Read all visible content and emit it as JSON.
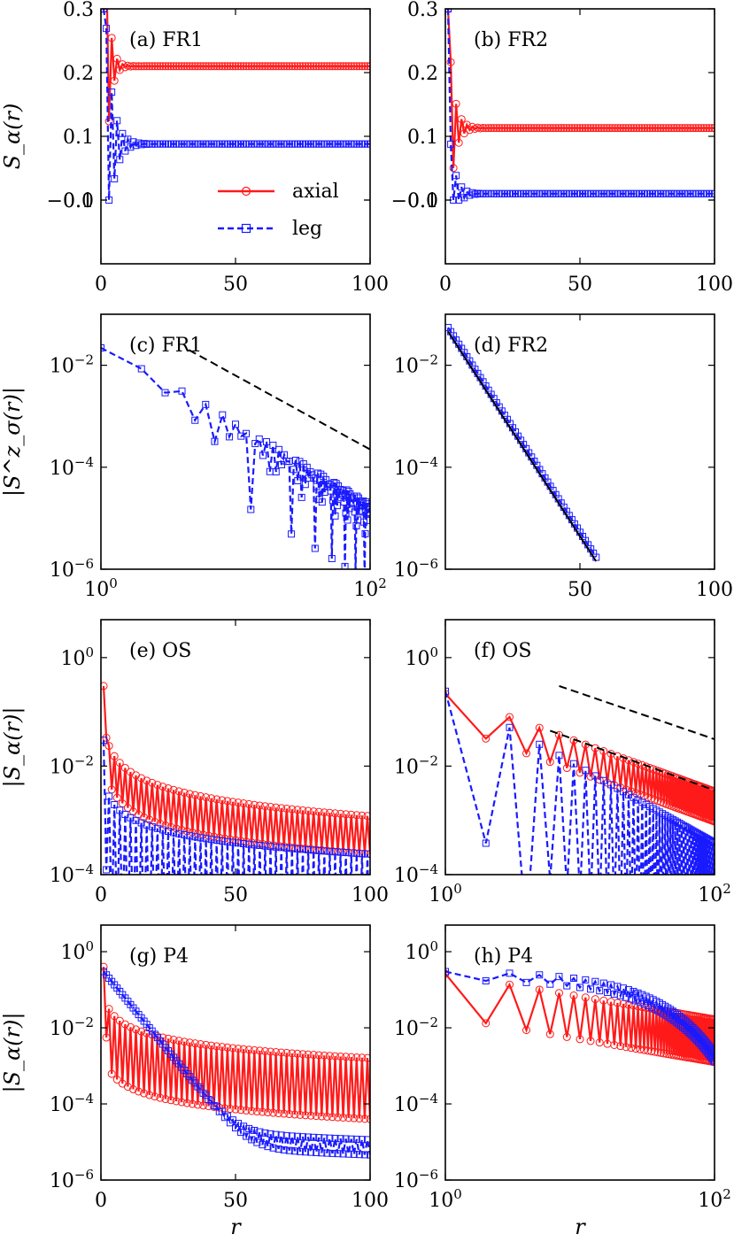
{
  "figure": {
    "xlabel": "r",
    "row_ylabels": [
      "S_α(r)",
      "|S^z_σ(r)|",
      "|S_α(r)|",
      "|S_α(r)|"
    ],
    "legend": {
      "axial": "axial",
      "leg": "leg"
    }
  },
  "colors": {
    "axial": "#ff1a1a",
    "leg": "#1a1aff",
    "fit": "#000000"
  },
  "chart_data": [
    {
      "id": "a",
      "panel_label": "(a) FR1",
      "type": "line",
      "xscale": "linear",
      "yscale": "linear",
      "xlim": [
        0,
        100
      ],
      "ylim": [
        -0.1,
        0.3
      ],
      "xticks": [
        {
          "v": 0,
          "t": "0"
        },
        {
          "v": 50,
          "t": "50"
        },
        {
          "v": 100,
          "t": "100"
        }
      ],
      "yticks": [
        {
          "v": -0.1,
          "t": "−0.1"
        },
        {
          "v": 0.0,
          "t": "0.0"
        },
        {
          "v": 0.1,
          "t": "0.1"
        },
        {
          "v": 0.2,
          "t": "0.2"
        },
        {
          "v": 0.3,
          "t": "0.3"
        }
      ],
      "legend": "inside-lower-center",
      "series": [
        {
          "name": "axial",
          "kind": "axial",
          "model": {
            "f": "damp",
            "a": 0.21,
            "b": -0.2,
            "t": 1.5,
            "n": 100,
            "x0": 1
          }
        },
        {
          "name": "leg",
          "kind": "leg",
          "model": {
            "f": "damp",
            "a": 0.088,
            "b": -0.25,
            "t": 2.5,
            "n": 100,
            "x0": 1
          }
        }
      ]
    },
    {
      "id": "b",
      "panel_label": "(b) FR2",
      "type": "line",
      "xscale": "linear",
      "yscale": "linear",
      "xlim": [
        0,
        100
      ],
      "ylim": [
        -0.1,
        0.3
      ],
      "xticks": [
        {
          "v": 0,
          "t": "0"
        },
        {
          "v": 50,
          "t": "50"
        },
        {
          "v": 100,
          "t": "100"
        }
      ],
      "yticks": [
        {
          "v": -0.1,
          "t": "−0.1"
        },
        {
          "v": 0.0,
          "t": "0.0"
        },
        {
          "v": 0.1,
          "t": "0.1"
        },
        {
          "v": 0.2,
          "t": "0.2"
        },
        {
          "v": 0.3,
          "t": "0.3"
        }
      ],
      "series": [
        {
          "name": "axial",
          "kind": "axial",
          "model": {
            "f": "damp",
            "a": 0.113,
            "b": -0.1,
            "t": 2.0,
            "n": 100,
            "x0": 1
          }
        },
        {
          "name": "leg",
          "kind": "leg",
          "model": {
            "f": "damp",
            "a": 0.01,
            "b": -0.15,
            "t": 2.0,
            "n": 100,
            "x0": 1
          }
        }
      ]
    },
    {
      "id": "c",
      "panel_label": "(c) FR1",
      "type": "line",
      "xscale": "log",
      "yscale": "log",
      "xlim": [
        1,
        100
      ],
      "ylim": [
        1e-06,
        0.1
      ],
      "xticks": [
        {
          "v": 1,
          "b": "10",
          "e": "0"
        },
        {
          "v": 100,
          "b": "10",
          "e": "2"
        }
      ],
      "yticks": [
        {
          "v": 1e-06,
          "b": "10",
          "e": "−6"
        },
        {
          "v": 0.0001,
          "b": "10",
          "e": "−4"
        },
        {
          "v": 0.01,
          "b": "10",
          "e": "−2"
        }
      ],
      "series": [
        {
          "name": "leg",
          "kind": "leg",
          "model": {
            "f": "powosc",
            "a": 0.03,
            "p": 1.6,
            "n": 100,
            "x0": 1,
            "dip": 3,
            "seed": 7
          }
        }
      ],
      "fit": {
        "x": [
          4.5,
          100
        ],
        "a": 0.02,
        "p": 1.45
      }
    },
    {
      "id": "d",
      "panel_label": "(d) FR2",
      "type": "line",
      "xscale": "linear",
      "yscale": "log",
      "xlim": [
        0,
        100
      ],
      "ylim": [
        1e-06,
        0.1
      ],
      "xticks": [
        {
          "v": 50,
          "t": "50"
        },
        {
          "v": 100,
          "t": "100"
        }
      ],
      "yticks": [
        {
          "v": 1e-06,
          "b": "10",
          "e": "−6"
        },
        {
          "v": 0.0001,
          "b": "10",
          "e": "−4"
        },
        {
          "v": 0.01,
          "b": "10",
          "e": "−2"
        }
      ],
      "series": [
        {
          "name": "leg",
          "kind": "leg",
          "model": {
            "f": "exp",
            "a": 0.055,
            "xi": 5.3,
            "n": 56,
            "x0": 1
          }
        }
      ],
      "fit": {
        "x": [
          1,
          56
        ],
        "a": 0.046,
        "xi": 5.3,
        "f": "exp"
      }
    },
    {
      "id": "e",
      "panel_label": "(e) OS",
      "type": "line",
      "xscale": "linear",
      "yscale": "log",
      "xlim": [
        0,
        100
      ],
      "ylim": [
        0.0001,
        5
      ],
      "xticks": [
        {
          "v": 0,
          "t": "0"
        },
        {
          "v": 50,
          "t": "50"
        },
        {
          "v": 100,
          "t": "100"
        }
      ],
      "yticks": [
        {
          "v": 0.0001,
          "b": "10",
          "e": "−4"
        },
        {
          "v": 0.01,
          "b": "10",
          "e": "−2"
        },
        {
          "v": 1,
          "b": "10",
          "e": "0"
        }
      ],
      "series": [
        {
          "name": "axial",
          "kind": "axial",
          "model": {
            "f": "altlin",
            "hi": 0.06,
            "lo": 0.012,
            "p": 0.85,
            "n": 100,
            "x0": 1
          }
        },
        {
          "name": "leg",
          "kind": "leg",
          "model": {
            "f": "altlin",
            "hi": 0.006,
            "lo": 4e-05,
            "p": 0.7,
            "n": 100,
            "x0": 1
          }
        }
      ]
    },
    {
      "id": "f",
      "panel_label": "(f) OS",
      "type": "line",
      "xscale": "log",
      "yscale": "log",
      "xlim": [
        1,
        100
      ],
      "ylim": [
        0.0001,
        5
      ],
      "xticks": [
        {
          "v": 1,
          "b": "10",
          "e": "0"
        },
        {
          "v": 100,
          "b": "10",
          "e": "2"
        }
      ],
      "yticks": [
        {
          "v": 0.0001,
          "b": "10",
          "e": "−4"
        },
        {
          "v": 0.01,
          "b": "10",
          "e": "−2"
        },
        {
          "v": 1,
          "b": "10",
          "e": "0"
        }
      ],
      "series": [
        {
          "name": "axial",
          "kind": "axial",
          "model": {
            "f": "altlog",
            "hi": 0.18,
            "lo": 0.06,
            "p": 0.9,
            "n": 100,
            "x0": 1
          }
        },
        {
          "name": "leg",
          "kind": "leg",
          "model": {
            "f": "altlog",
            "hi": 0.2,
            "lo": 0.001,
            "p": 1.4,
            "n": 100,
            "x0": 1
          }
        }
      ],
      "fit": [
        {
          "x": [
            7,
            100
          ],
          "a": 0.3,
          "p": 0.85
        },
        {
          "x": [
            6,
            100
          ],
          "a": 0.045,
          "p": 0.9
        }
      ]
    },
    {
      "id": "g",
      "panel_label": "(g) P4",
      "type": "line",
      "xscale": "linear",
      "yscale": "log",
      "xlim": [
        0,
        100
      ],
      "ylim": [
        1e-06,
        5
      ],
      "xticks": [
        {
          "v": 0,
          "t": "0"
        },
        {
          "v": 50,
          "t": "50"
        },
        {
          "v": 100,
          "t": "100"
        }
      ],
      "yticks": [
        {
          "v": 1e-06,
          "b": "10",
          "e": "−6"
        },
        {
          "v": 0.0001,
          "b": "10",
          "e": "−4"
        },
        {
          "v": 0.01,
          "b": "10",
          "e": "−2"
        },
        {
          "v": 1,
          "b": "10",
          "e": "0"
        }
      ],
      "series": [
        {
          "name": "axial",
          "kind": "axial",
          "model": {
            "f": "altlin",
            "hi": 0.08,
            "lo": 0.002,
            "p": 0.85,
            "n": 100,
            "x0": 1
          }
        },
        {
          "name": "leg",
          "kind": "leg",
          "model": {
            "f": "p4leg",
            "n": 100,
            "x0": 1
          }
        }
      ]
    },
    {
      "id": "h",
      "panel_label": "(h) P4",
      "type": "line",
      "xscale": "log",
      "yscale": "log",
      "xlim": [
        1,
        100
      ],
      "ylim": [
        1e-06,
        5
      ],
      "xticks": [
        {
          "v": 1,
          "b": "10",
          "e": "0"
        },
        {
          "v": 100,
          "b": "10",
          "e": "2"
        }
      ],
      "yticks": [
        {
          "v": 1e-06,
          "b": "10",
          "e": "−6"
        },
        {
          "v": 0.0001,
          "b": "10",
          "e": "−4"
        },
        {
          "v": 0.01,
          "b": "10",
          "e": "−2"
        },
        {
          "v": 1,
          "b": "10",
          "e": "0"
        }
      ],
      "series": [
        {
          "name": "axial",
          "kind": "axial",
          "model": {
            "f": "altlog",
            "hi": 0.22,
            "lo": 0.02,
            "p": 0.6,
            "n": 100,
            "x0": 1
          }
        },
        {
          "name": "leg",
          "kind": "leg",
          "model": {
            "f": "p4legh",
            "n": 100,
            "x0": 1
          }
        }
      ]
    }
  ]
}
